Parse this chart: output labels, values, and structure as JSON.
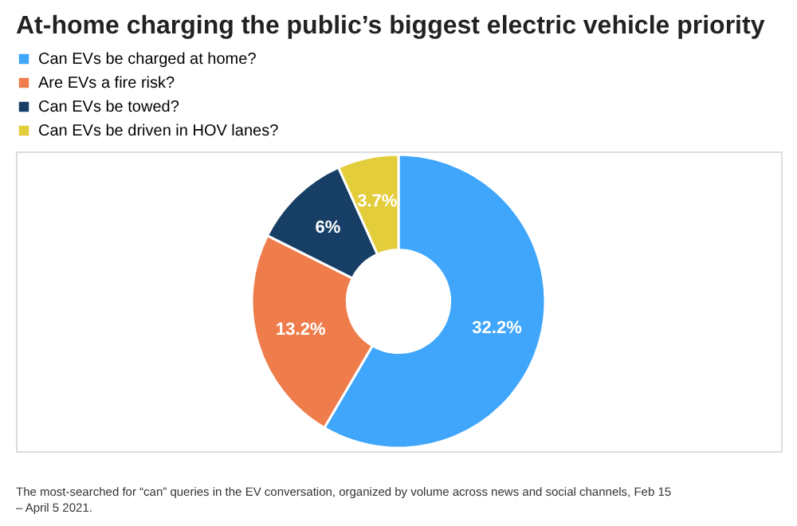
{
  "chart_data": {
    "type": "donut",
    "title": "At-home charging the public’s biggest electric vehicle priority",
    "categories": [
      "Can EVs be charged at home?",
      "Are EVs a fire risk?",
      "Can EVs be towed?",
      "Can EVs be driven in HOV lanes?"
    ],
    "values": [
      32.2,
      13.2,
      6,
      3.7
    ],
    "value_labels": [
      "32.2%",
      "13.2%",
      "6%",
      "3.7%"
    ],
    "colors": [
      "#3fa6fb",
      "#ef7d4c",
      "#173f66",
      "#e3cd3a"
    ],
    "data_labels": true,
    "legend": "top left",
    "annotations": [
      "The most-searched for “can” queries in the EV conversation, organized by volume across news and social channels, Feb 15 – April 5 2021."
    ]
  }
}
